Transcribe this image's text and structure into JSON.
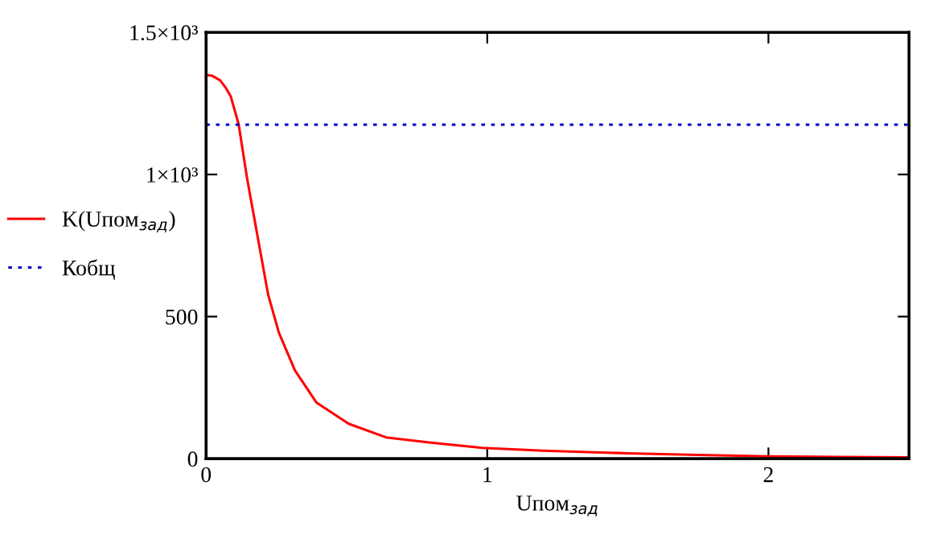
{
  "chart_data": {
    "type": "line",
    "xlabel": "Uпом$_{зад}$",
    "xlim": [
      0,
      2.5
    ],
    "xticks": [
      0,
      1,
      2
    ],
    "ylim": [
      0,
      1500
    ],
    "yticks": [
      0,
      500,
      {
        "value": 1000,
        "label": "1×10³"
      },
      {
        "value": 1500,
        "label": "1.5×10³"
      }
    ],
    "grid": false,
    "legend": "left",
    "marker": "none",
    "series": [
      {
        "name": "K(Uпом$_{зад}$)",
        "color": "#ff0000",
        "line_style": "solid",
        "x": [
          0,
          0.02,
          0.05,
          0.07,
          0.088,
          0.116,
          0.145,
          0.183,
          0.221,
          0.259,
          0.316,
          0.392,
          0.507,
          0.64,
          0.793,
          0.983,
          1.2,
          1.5,
          1.75,
          2.0,
          2.25,
          2.5
        ],
        "values": [
          1350,
          1348,
          1331,
          1305,
          1274,
          1176,
          991,
          783,
          576,
          443,
          311,
          198,
          123,
          75,
          57,
          38,
          28,
          19,
          13,
          8,
          6,
          5
        ]
      },
      {
        "name": "Кобщ",
        "color": "#0000cc",
        "line_style": "dotted",
        "x": [
          0,
          2.5
        ],
        "values": [
          1175,
          1175
        ]
      }
    ]
  }
}
